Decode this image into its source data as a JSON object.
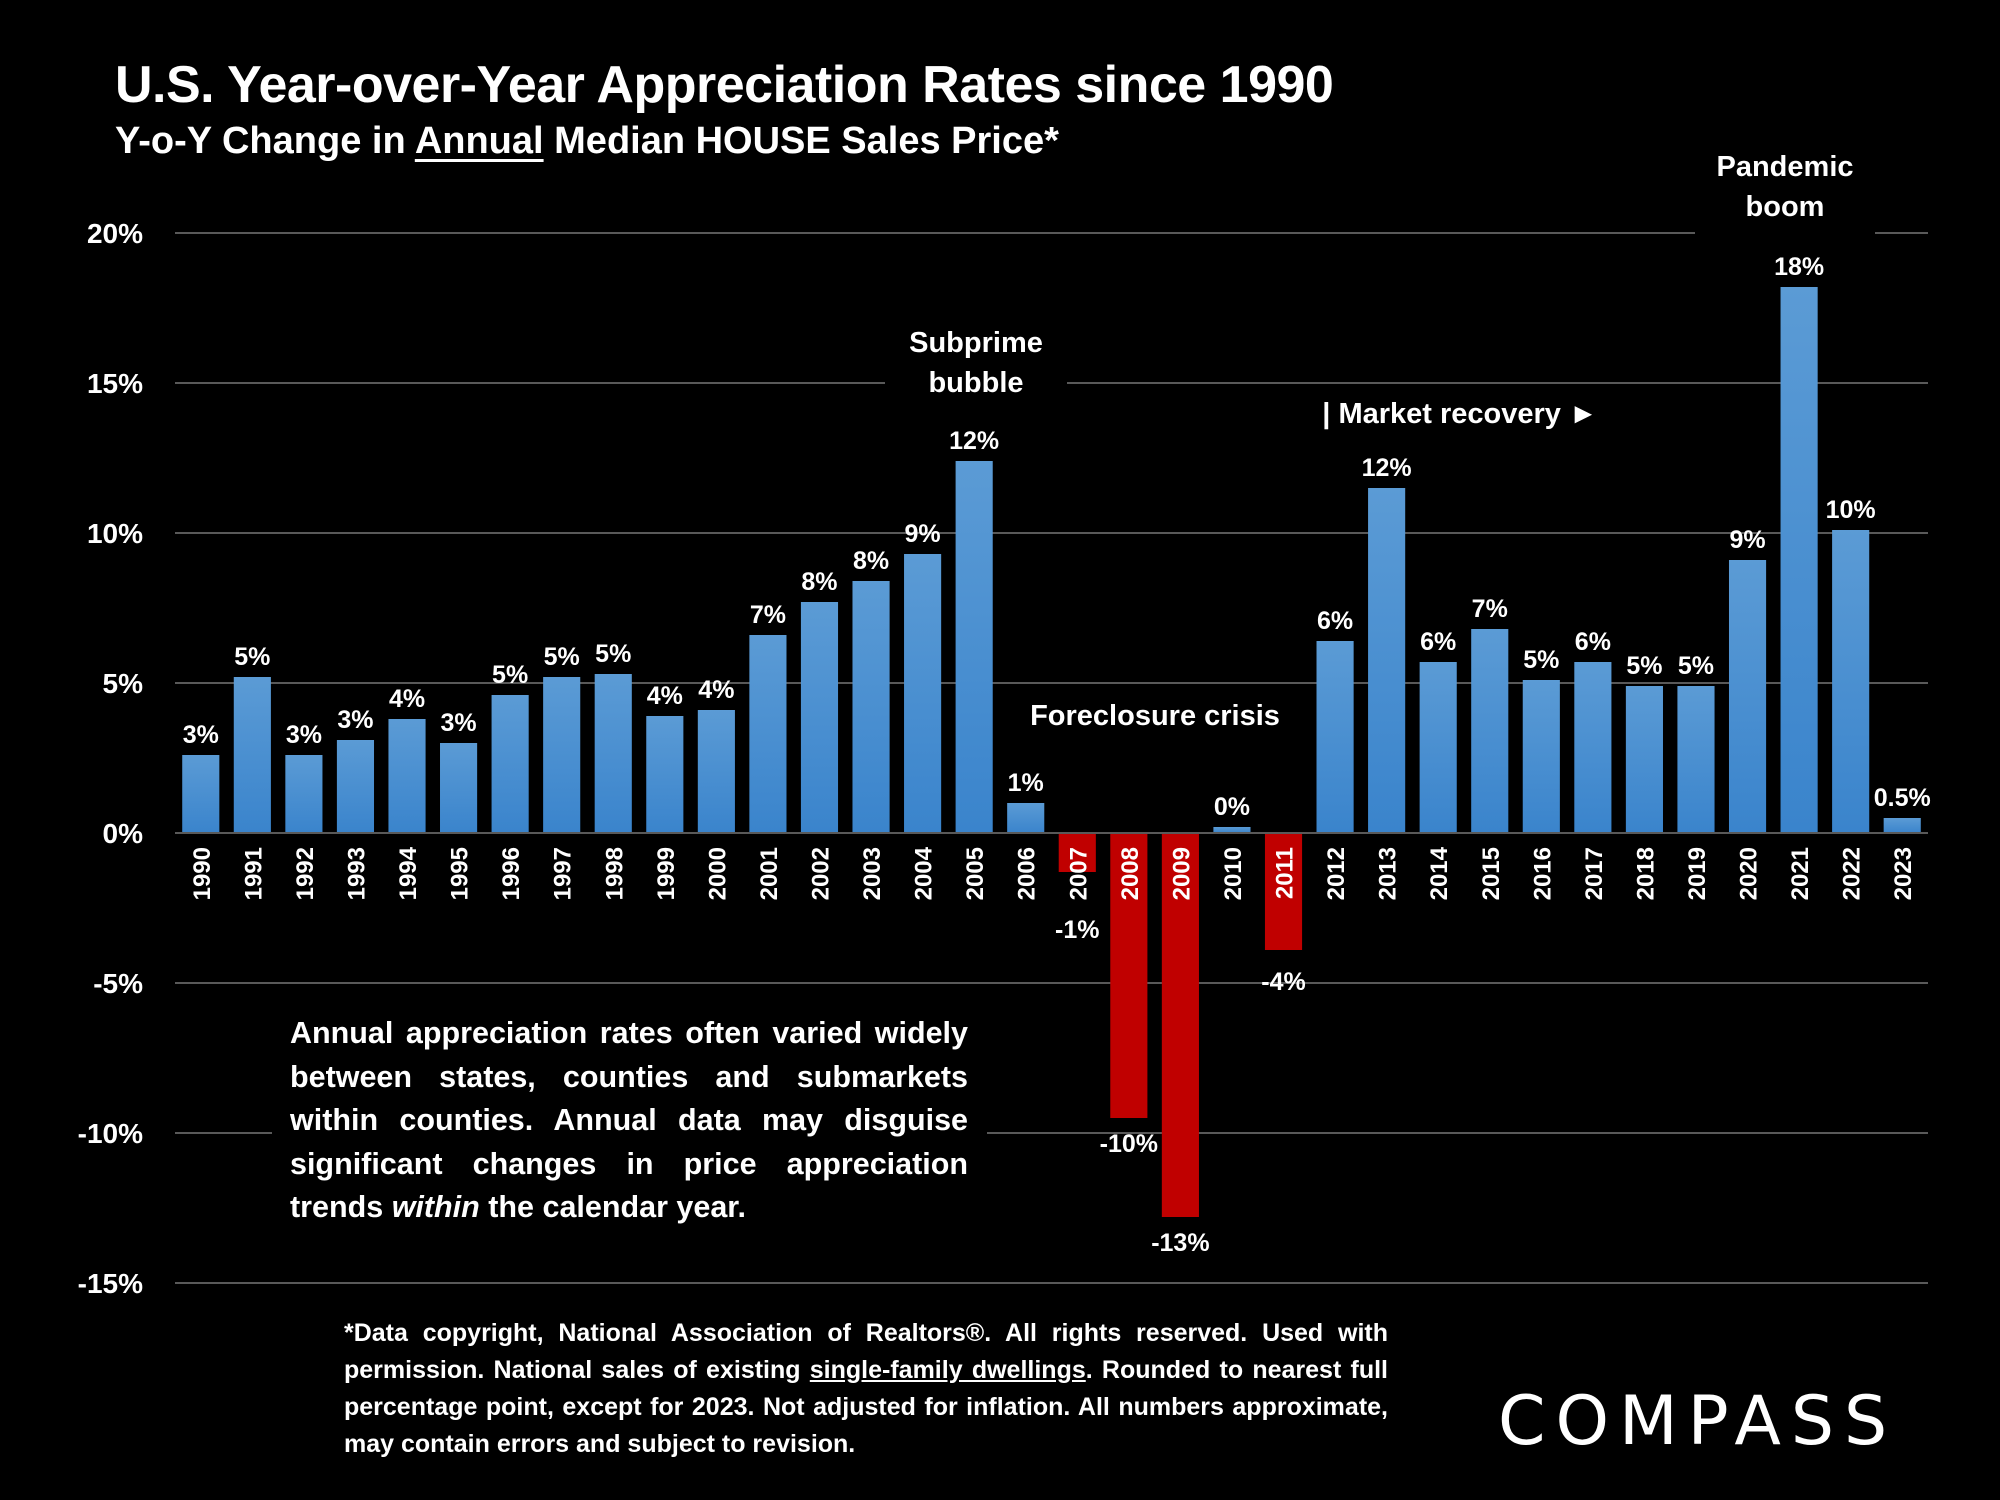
{
  "header": {
    "title": "U.S. Year-over-Year Appreciation Rates since 1990",
    "subtitle_pre": "Y-o-Y Change in ",
    "subtitle_underlined": "Annual",
    "subtitle_post": " Median HOUSE Sales Price*"
  },
  "chart_data": {
    "type": "bar",
    "title": "U.S. Year-over-Year Appreciation Rates since 1990",
    "subtitle": "Y-o-Y Change in Annual Median HOUSE Sales Price*",
    "xlabel": "",
    "ylabel": "",
    "ylim": [
      -15,
      20
    ],
    "yticks": [
      20,
      15,
      10,
      5,
      0,
      -5,
      -10,
      -15
    ],
    "ytick_labels": [
      "20%",
      "15%",
      "10%",
      "5%",
      "0%",
      "-5%",
      "-10%",
      "-15%"
    ],
    "grid": true,
    "categories": [
      "1990",
      "1991",
      "1992",
      "1993",
      "1994",
      "1995",
      "1996",
      "1997",
      "1998",
      "1999",
      "2000",
      "2001",
      "2002",
      "2003",
      "2004",
      "2005",
      "2006",
      "2007",
      "2008",
      "2009",
      "2010",
      "2011",
      "2012",
      "2013",
      "2014",
      "2015",
      "2016",
      "2017",
      "2018",
      "2019",
      "2020",
      "2021",
      "2022",
      "2023"
    ],
    "values": [
      2.6,
      5.2,
      2.6,
      3.1,
      3.8,
      3.0,
      4.6,
      5.2,
      5.3,
      3.9,
      4.1,
      6.6,
      7.7,
      8.4,
      9.3,
      12.4,
      1.0,
      -1.3,
      -9.5,
      -12.8,
      0.2,
      -3.9,
      6.4,
      11.5,
      5.7,
      6.8,
      5.1,
      5.7,
      4.9,
      4.9,
      9.1,
      18.2,
      10.1,
      0.5
    ],
    "data_labels": [
      "3%",
      "5%",
      "3%",
      "3%",
      "4%",
      "3%",
      "5%",
      "5%",
      "5%",
      "4%",
      "4%",
      "7%",
      "8%",
      "8%",
      "9%",
      "12%",
      "1%",
      "-1%",
      "-10%",
      "-13%",
      "0%",
      "-4%",
      "6%",
      "12%",
      "6%",
      "7%",
      "5%",
      "6%",
      "5%",
      "5%",
      "9%",
      "18%",
      "10%",
      "0.5%"
    ],
    "colors": {
      "positive": "#5b9bd5",
      "positive_dark": "#3a84cc",
      "negative": "#c00000",
      "grid": "#595959",
      "background": "#000000",
      "text": "#ffffff"
    },
    "annotations": [
      {
        "text": [
          "Subprime",
          "bubble"
        ],
        "near": "2005"
      },
      {
        "text": [
          "Foreclosure crisis"
        ],
        "near": "2008-2010"
      },
      {
        "text": [
          "| Market recovery ►"
        ],
        "near": "2012-2015"
      },
      {
        "text": [
          "Pandemic",
          "boom"
        ],
        "near": "2020-2021"
      }
    ]
  },
  "note": {
    "line1": "Annual appreciation rates often varied widely between states, counties and submarkets within counties. Annual data may disguise significant changes in price appreciation trends ",
    "italic": "within",
    "line2": " the calendar year."
  },
  "footnote": {
    "pre": "*Data copyright, National Association of Realtors®. All rights reserved. Used with permission. National sales of existing ",
    "underlined": "single-family dwellings",
    "post": ". Rounded to nearest full percentage point, except for 2023. Not adjusted for inflation. All numbers approximate, may contain errors and subject to revision."
  },
  "logo": {
    "text": "COMPASS"
  }
}
